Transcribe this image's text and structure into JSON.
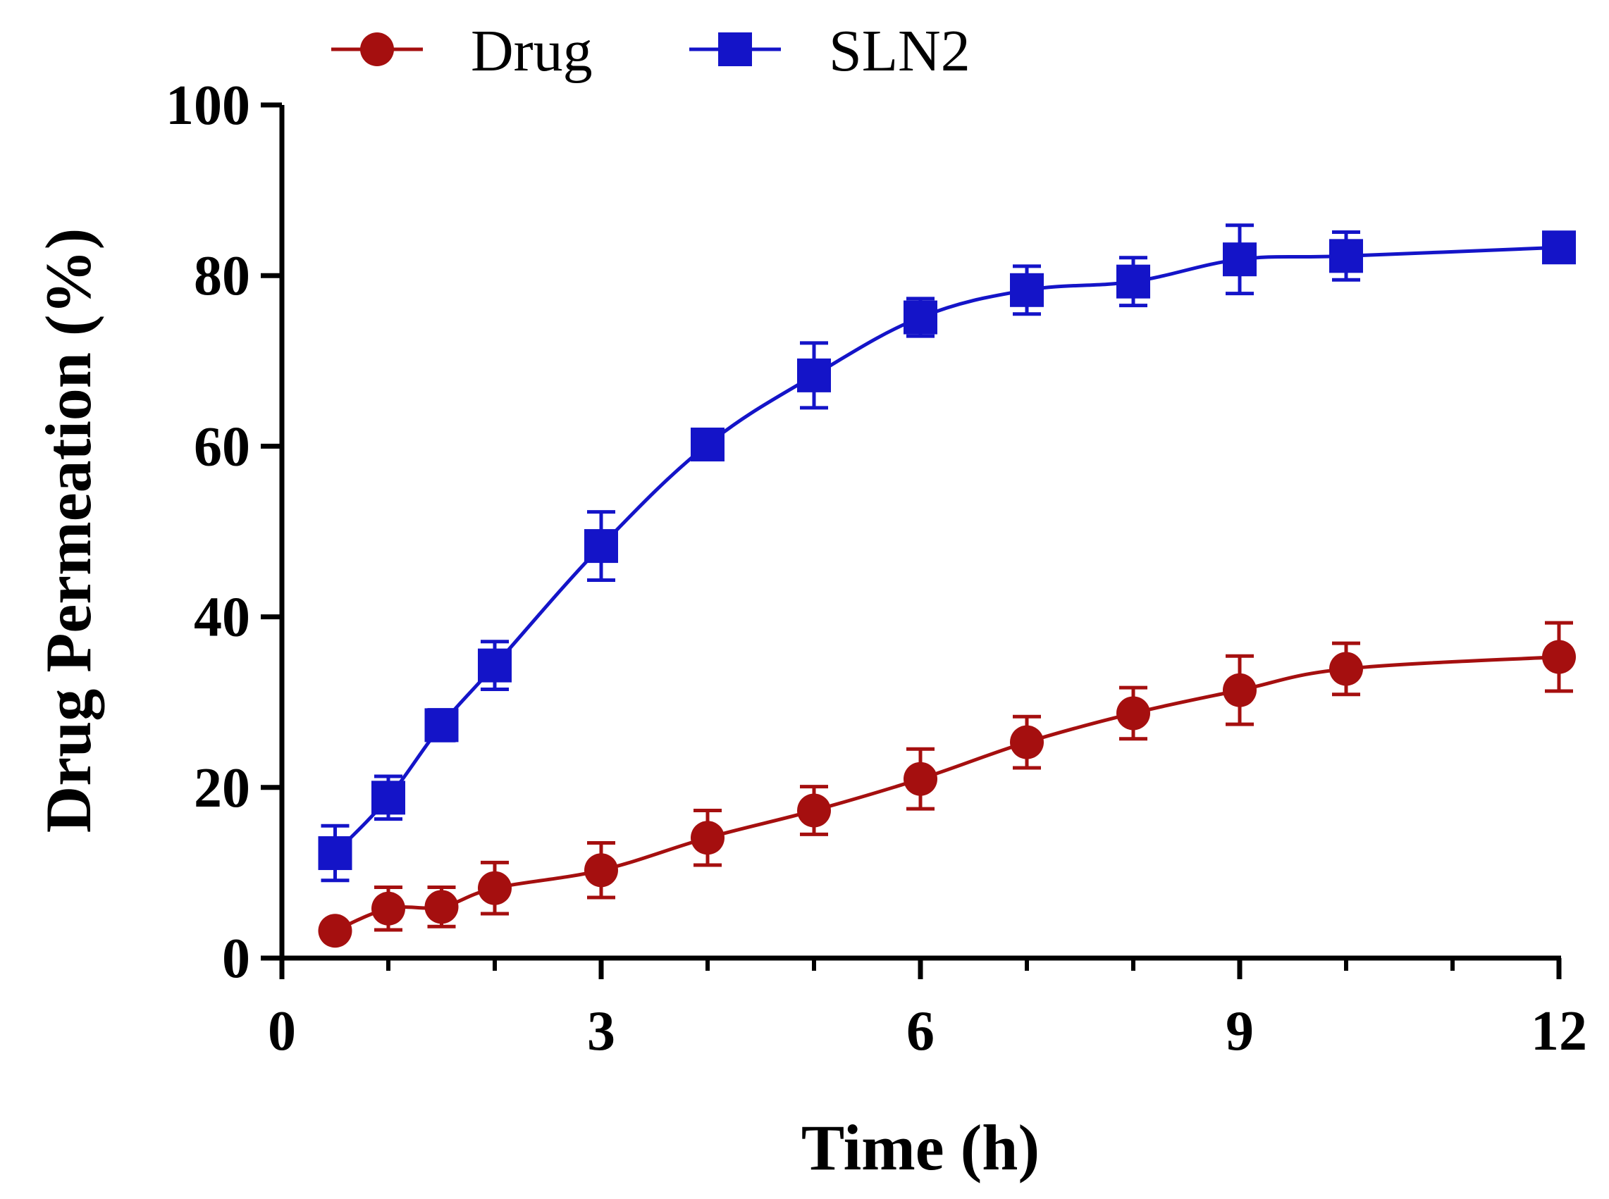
{
  "chart_data": {
    "type": "line",
    "title": "",
    "xlabel": "Time (h)",
    "ylabel": "Drug Permeation (%)",
    "xlim": [
      0,
      12
    ],
    "ylim": [
      0,
      100
    ],
    "xticks": [
      0,
      3,
      6,
      9,
      12
    ],
    "x_minor_ticks": [
      1,
      2,
      4,
      5,
      7,
      8,
      10,
      11
    ],
    "yticks": [
      0,
      20,
      40,
      60,
      80,
      100
    ],
    "grid": false,
    "legend_position": "top",
    "series": [
      {
        "name": "Drug",
        "marker": "circle",
        "color": "#a50f0f",
        "x": [
          0.5,
          1,
          1.5,
          2,
          3,
          4,
          5,
          6,
          7,
          8,
          9,
          10,
          12
        ],
        "values": [
          3.2,
          5.8,
          6.0,
          8.2,
          10.3,
          14.1,
          17.3,
          21.0,
          25.3,
          28.7,
          31.4,
          33.9,
          35.3
        ],
        "error": [
          0.8,
          2.5,
          2.3,
          3.0,
          3.2,
          3.2,
          2.8,
          3.5,
          3.0,
          3.0,
          4.0,
          3.0,
          4.0
        ]
      },
      {
        "name": "SLN2",
        "marker": "square",
        "color": "#1414c8",
        "x": [
          0.5,
          1,
          1.5,
          2,
          3,
          4,
          5,
          6,
          7,
          8,
          9,
          10,
          12
        ],
        "values": [
          12.3,
          18.8,
          27.3,
          34.3,
          48.3,
          60.2,
          68.3,
          75.1,
          78.3,
          79.3,
          81.9,
          82.3,
          83.3
        ],
        "error": [
          3.2,
          2.5,
          1.8,
          2.8,
          4.0,
          1.2,
          3.8,
          2.2,
          2.8,
          2.8,
          4.0,
          2.8,
          1.2
        ]
      }
    ]
  }
}
